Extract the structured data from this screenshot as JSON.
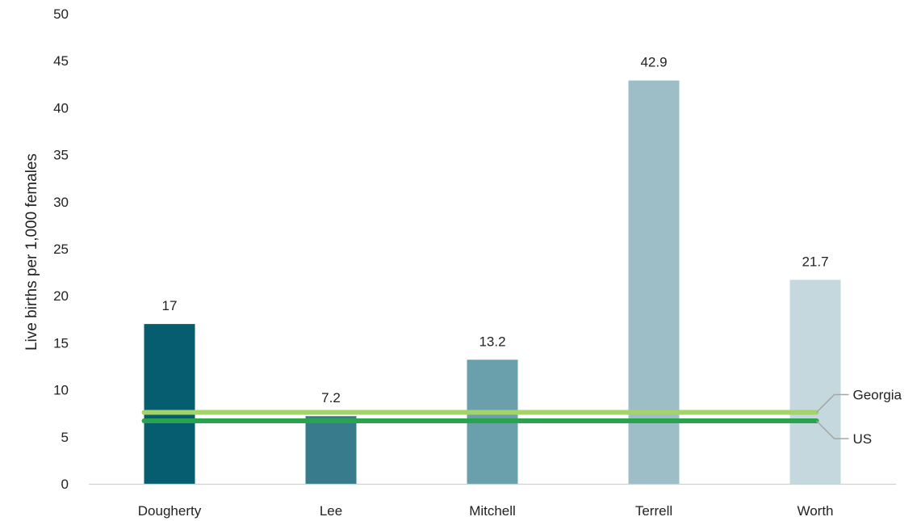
{
  "chart_data": {
    "type": "bar",
    "title": "",
    "xlabel": "",
    "ylabel": "Live births per 1,000 females",
    "ylim": [
      0,
      50
    ],
    "yticks": [
      0,
      5,
      10,
      15,
      20,
      25,
      30,
      35,
      40,
      45,
      50
    ],
    "grid": false,
    "categories": [
      "Dougherty",
      "Lee",
      "Mitchell",
      "Terrell",
      "Worth"
    ],
    "values": [
      17,
      7.2,
      13.2,
      42.9,
      21.7
    ],
    "data_labels": [
      "17",
      "7.2",
      "13.2",
      "42.9",
      "21.7"
    ],
    "bar_colors": [
      "#065d70",
      "#377b8d",
      "#6a9fac",
      "#9dbdc7",
      "#c4d8dd"
    ],
    "reference_lines": [
      {
        "name": "Georgia",
        "value": 7.6,
        "color": "#a5d36b"
      },
      {
        "name": "US",
        "value": 6.7,
        "color": "#2aa34f"
      }
    ],
    "leader_color": "#a6a6a6",
    "axis_color": "#d0d0d0"
  }
}
